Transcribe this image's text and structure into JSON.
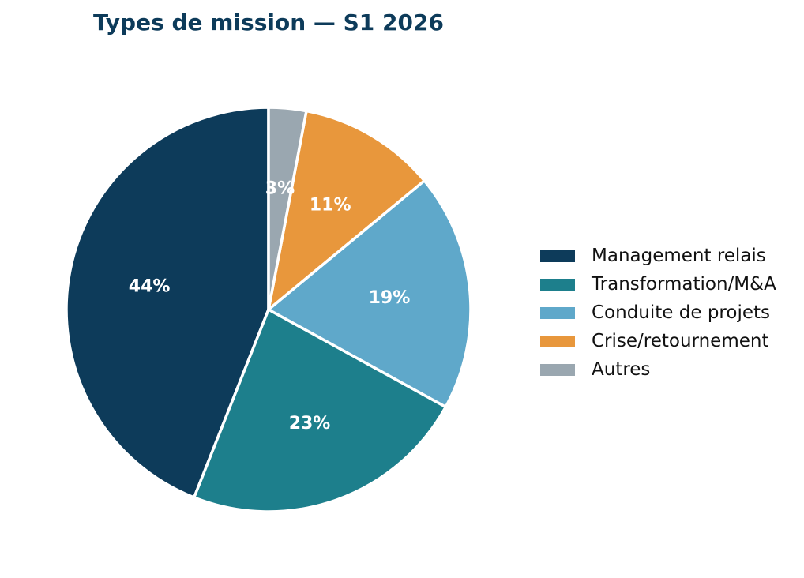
{
  "chart_data": {
    "type": "pie",
    "title": "Types de mission — S1 2026",
    "start": "top",
    "direction": "counterclockwise",
    "legend_position": "right",
    "slices": [
      {
        "label": "Management relais",
        "value": 44,
        "display": "44%",
        "color": "#0d3b5a"
      },
      {
        "label": "Transformation/M&A",
        "value": 23,
        "display": "23%",
        "color": "#1d7f8c"
      },
      {
        "label": "Conduite de projets",
        "value": 19,
        "display": "19%",
        "color": "#5fa8ca"
      },
      {
        "label": "Crise/retournement",
        "value": 11,
        "display": "11%",
        "color": "#e8973c"
      },
      {
        "label": "Autres",
        "value": 3,
        "display": "3%",
        "color": "#9aa7b0"
      }
    ]
  }
}
